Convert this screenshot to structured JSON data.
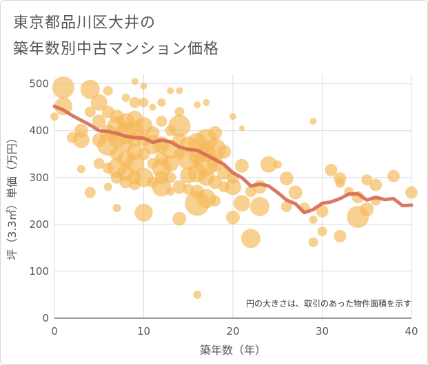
{
  "header": {
    "title_line1": "東京都品川区大井の",
    "title_line2": "築年数別中古マンション価格"
  },
  "chart_data": {
    "type": "scatter",
    "title": "東京都品川区大井の築年数別中古マンション価格",
    "xlabel": "築年数（年）",
    "ylabel": "坪（3.3㎡）単価（万円）",
    "xlim": [
      0,
      40
    ],
    "ylim": [
      0,
      520
    ],
    "x_ticks": [
      "0",
      "10",
      "20",
      "30",
      "40"
    ],
    "y_ticks": [
      "0",
      "100",
      "200",
      "300",
      "400",
      "500"
    ],
    "note": "円の大きさは、取引のあった物件面積を示す",
    "colors": {
      "bubble": "#f5b856",
      "trend": "#d46a55",
      "grid": "#d7dee8"
    },
    "bubbles": [
      {
        "x": 1,
        "y": 492,
        "s": 16
      },
      {
        "x": 1,
        "y": 452,
        "s": 13
      },
      {
        "x": 0,
        "y": 430,
        "s": 6
      },
      {
        "x": 2,
        "y": 385,
        "s": 8
      },
      {
        "x": 3,
        "y": 380,
        "s": 12
      },
      {
        "x": 3,
        "y": 400,
        "s": 10
      },
      {
        "x": 3,
        "y": 318,
        "s": 6
      },
      {
        "x": 4,
        "y": 488,
        "s": 14
      },
      {
        "x": 4,
        "y": 440,
        "s": 8
      },
      {
        "x": 4,
        "y": 268,
        "s": 8
      },
      {
        "x": 5,
        "y": 460,
        "s": 12
      },
      {
        "x": 5,
        "y": 420,
        "s": 10
      },
      {
        "x": 5,
        "y": 380,
        "s": 10
      },
      {
        "x": 5,
        "y": 330,
        "s": 8
      },
      {
        "x": 6,
        "y": 485,
        "s": 7
      },
      {
        "x": 6,
        "y": 440,
        "s": 9
      },
      {
        "x": 6,
        "y": 395,
        "s": 12
      },
      {
        "x": 6,
        "y": 370,
        "s": 16
      },
      {
        "x": 6,
        "y": 280,
        "s": 6
      },
      {
        "x": 6,
        "y": 320,
        "s": 8
      },
      {
        "x": 7,
        "y": 430,
        "s": 10
      },
      {
        "x": 7,
        "y": 410,
        "s": 14
      },
      {
        "x": 7,
        "y": 380,
        "s": 12
      },
      {
        "x": 7,
        "y": 350,
        "s": 10
      },
      {
        "x": 7,
        "y": 320,
        "s": 14
      },
      {
        "x": 7,
        "y": 300,
        "s": 9
      },
      {
        "x": 7,
        "y": 235,
        "s": 6
      },
      {
        "x": 8,
        "y": 470,
        "s": 6
      },
      {
        "x": 8,
        "y": 420,
        "s": 12
      },
      {
        "x": 8,
        "y": 395,
        "s": 16
      },
      {
        "x": 8,
        "y": 370,
        "s": 10
      },
      {
        "x": 8,
        "y": 340,
        "s": 12
      },
      {
        "x": 8,
        "y": 310,
        "s": 12
      },
      {
        "x": 8,
        "y": 290,
        "s": 9
      },
      {
        "x": 9,
        "y": 505,
        "s": 5
      },
      {
        "x": 9,
        "y": 460,
        "s": 8
      },
      {
        "x": 9,
        "y": 425,
        "s": 12
      },
      {
        "x": 9,
        "y": 400,
        "s": 14
      },
      {
        "x": 9,
        "y": 380,
        "s": 10
      },
      {
        "x": 9,
        "y": 355,
        "s": 12
      },
      {
        "x": 9,
        "y": 330,
        "s": 14
      },
      {
        "x": 9,
        "y": 300,
        "s": 10
      },
      {
        "x": 9,
        "y": 285,
        "s": 8
      },
      {
        "x": 10,
        "y": 495,
        "s": 5
      },
      {
        "x": 10,
        "y": 460,
        "s": 7
      },
      {
        "x": 10,
        "y": 410,
        "s": 13
      },
      {
        "x": 10,
        "y": 380,
        "s": 10
      },
      {
        "x": 10,
        "y": 350,
        "s": 9
      },
      {
        "x": 10,
        "y": 300,
        "s": 14
      },
      {
        "x": 10,
        "y": 225,
        "s": 13
      },
      {
        "x": 11,
        "y": 450,
        "s": 5
      },
      {
        "x": 11,
        "y": 395,
        "s": 10
      },
      {
        "x": 11,
        "y": 370,
        "s": 14
      },
      {
        "x": 11,
        "y": 330,
        "s": 8
      },
      {
        "x": 11,
        "y": 290,
        "s": 8
      },
      {
        "x": 12,
        "y": 460,
        "s": 6
      },
      {
        "x": 12,
        "y": 420,
        "s": 8
      },
      {
        "x": 12,
        "y": 370,
        "s": 12
      },
      {
        "x": 12,
        "y": 340,
        "s": 10
      },
      {
        "x": 12,
        "y": 320,
        "s": 14
      },
      {
        "x": 12,
        "y": 300,
        "s": 10
      },
      {
        "x": 12,
        "y": 280,
        "s": 14
      },
      {
        "x": 13,
        "y": 485,
        "s": 5
      },
      {
        "x": 13,
        "y": 400,
        "s": 8
      },
      {
        "x": 13,
        "y": 360,
        "s": 14
      },
      {
        "x": 13,
        "y": 330,
        "s": 12
      },
      {
        "x": 13,
        "y": 300,
        "s": 8
      },
      {
        "x": 13,
        "y": 270,
        "s": 6
      },
      {
        "x": 14,
        "y": 485,
        "s": 5
      },
      {
        "x": 14,
        "y": 440,
        "s": 7
      },
      {
        "x": 14,
        "y": 410,
        "s": 16
      },
      {
        "x": 14,
        "y": 380,
        "s": 10
      },
      {
        "x": 14,
        "y": 350,
        "s": 8
      },
      {
        "x": 14,
        "y": 280,
        "s": 10
      },
      {
        "x": 14,
        "y": 212,
        "s": 10
      },
      {
        "x": 15,
        "y": 370,
        "s": 12
      },
      {
        "x": 15,
        "y": 340,
        "s": 16
      },
      {
        "x": 15,
        "y": 305,
        "s": 12
      },
      {
        "x": 15,
        "y": 275,
        "s": 8
      },
      {
        "x": 16,
        "y": 455,
        "s": 5
      },
      {
        "x": 16,
        "y": 375,
        "s": 14
      },
      {
        "x": 16,
        "y": 345,
        "s": 12
      },
      {
        "x": 16,
        "y": 310,
        "s": 14
      },
      {
        "x": 16,
        "y": 270,
        "s": 10
      },
      {
        "x": 16,
        "y": 245,
        "s": 18
      },
      {
        "x": 16,
        "y": 50,
        "s": 6
      },
      {
        "x": 17,
        "y": 460,
        "s": 5
      },
      {
        "x": 17,
        "y": 380,
        "s": 16
      },
      {
        "x": 17,
        "y": 355,
        "s": 14
      },
      {
        "x": 17,
        "y": 330,
        "s": 18
      },
      {
        "x": 17,
        "y": 300,
        "s": 12
      },
      {
        "x": 17,
        "y": 255,
        "s": 14
      },
      {
        "x": 18,
        "y": 395,
        "s": 10
      },
      {
        "x": 18,
        "y": 360,
        "s": 16
      },
      {
        "x": 18,
        "y": 330,
        "s": 12
      },
      {
        "x": 18,
        "y": 290,
        "s": 10
      },
      {
        "x": 18,
        "y": 250,
        "s": 8
      },
      {
        "x": 19,
        "y": 355,
        "s": 10
      },
      {
        "x": 19,
        "y": 310,
        "s": 10
      },
      {
        "x": 19,
        "y": 280,
        "s": 8
      },
      {
        "x": 20,
        "y": 430,
        "s": 5
      },
      {
        "x": 20,
        "y": 300,
        "s": 9
      },
      {
        "x": 20,
        "y": 280,
        "s": 12
      },
      {
        "x": 20,
        "y": 215,
        "s": 10
      },
      {
        "x": 21,
        "y": 405,
        "s": 4
      },
      {
        "x": 21,
        "y": 325,
        "s": 10
      },
      {
        "x": 21,
        "y": 245,
        "s": 12
      },
      {
        "x": 22,
        "y": 270,
        "s": 8
      },
      {
        "x": 22,
        "y": 170,
        "s": 14
      },
      {
        "x": 23,
        "y": 280,
        "s": 10
      },
      {
        "x": 23,
        "y": 238,
        "s": 14
      },
      {
        "x": 24,
        "y": 328,
        "s": 12
      },
      {
        "x": 25,
        "y": 328,
        "s": 6
      },
      {
        "x": 26,
        "y": 298,
        "s": 10
      },
      {
        "x": 26,
        "y": 238,
        "s": 8
      },
      {
        "x": 27,
        "y": 268,
        "s": 10
      },
      {
        "x": 28,
        "y": 235,
        "s": 8
      },
      {
        "x": 29,
        "y": 420,
        "s": 5
      },
      {
        "x": 29,
        "y": 210,
        "s": 6
      },
      {
        "x": 29,
        "y": 162,
        "s": 7
      },
      {
        "x": 30,
        "y": 228,
        "s": 9
      },
      {
        "x": 30,
        "y": 185,
        "s": 7
      },
      {
        "x": 31,
        "y": 316,
        "s": 9
      },
      {
        "x": 32,
        "y": 298,
        "s": 9
      },
      {
        "x": 32,
        "y": 288,
        "s": 7
      },
      {
        "x": 32,
        "y": 175,
        "s": 9
      },
      {
        "x": 33,
        "y": 270,
        "s": 7
      },
      {
        "x": 34,
        "y": 258,
        "s": 9
      },
      {
        "x": 34,
        "y": 216,
        "s": 16
      },
      {
        "x": 35,
        "y": 295,
        "s": 8
      },
      {
        "x": 35,
        "y": 232,
        "s": 10
      },
      {
        "x": 36,
        "y": 284,
        "s": 9
      },
      {
        "x": 36,
        "y": 250,
        "s": 7
      },
      {
        "x": 38,
        "y": 303,
        "s": 9
      },
      {
        "x": 40,
        "y": 268,
        "s": 9
      }
    ],
    "trend_line": {
      "name": "",
      "x": [
        0,
        1,
        2,
        3,
        4,
        5,
        6,
        7,
        8,
        9,
        10,
        11,
        12,
        13,
        14,
        15,
        16,
        17,
        18,
        19,
        20,
        21,
        22,
        23,
        24,
        25,
        26,
        27,
        28,
        29,
        30,
        31,
        32,
        33,
        34,
        35,
        36,
        37,
        38,
        39,
        40
      ],
      "y": [
        452,
        444,
        432,
        422,
        412,
        400,
        398,
        394,
        388,
        385,
        384,
        375,
        380,
        376,
        365,
        360,
        358,
        348,
        338,
        328,
        310,
        300,
        282,
        286,
        282,
        268,
        252,
        244,
        225,
        232,
        245,
        248,
        255,
        265,
        265,
        252,
        258,
        253,
        255,
        240,
        241
      ]
    }
  }
}
